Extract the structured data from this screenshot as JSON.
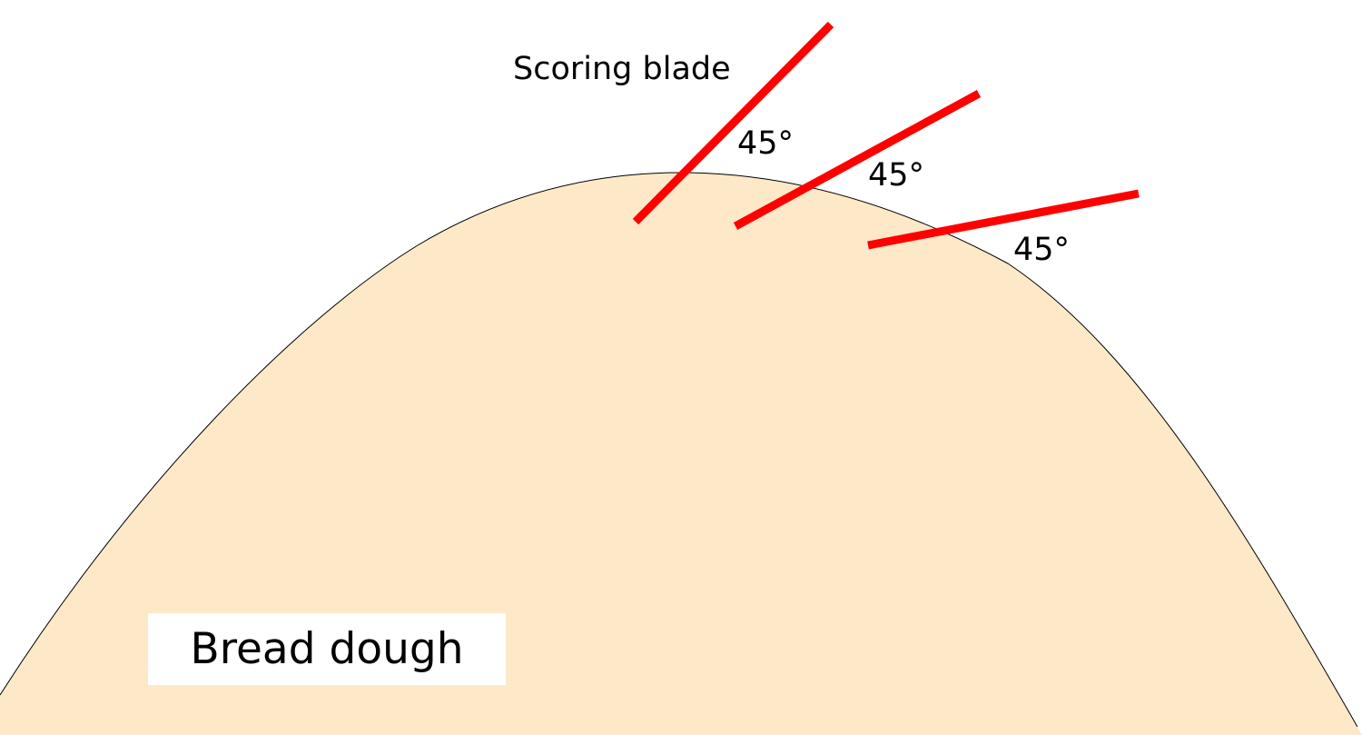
{
  "colors": {
    "dough": "#fde8c8",
    "blade": "#ff0000",
    "outline": "#000000"
  },
  "labels": {
    "blade": "Scoring blade",
    "angles": [
      "45°",
      "45°",
      "45°"
    ],
    "dough": "Bread dough"
  }
}
